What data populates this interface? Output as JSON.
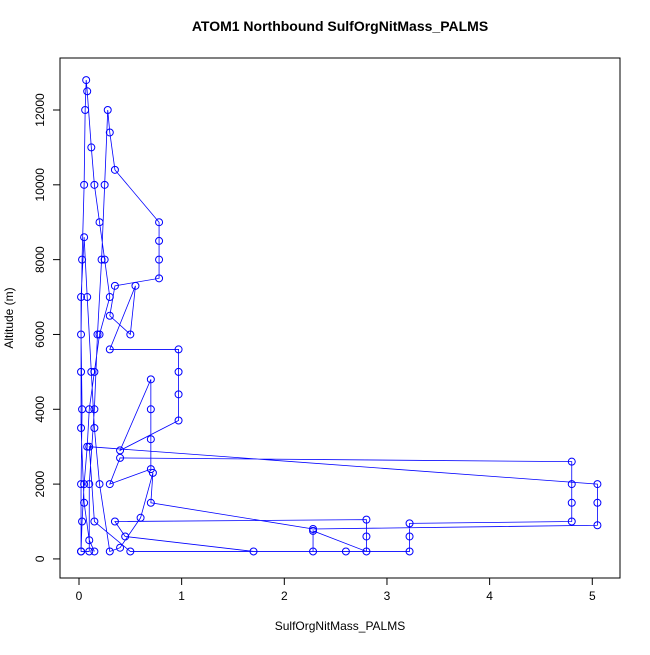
{
  "chart_data": {
    "type": "line",
    "title": "ATOM1 Northbound SulfOrgNitMass_PALMS",
    "x_label": "SulfOrgNitMass_PALMS",
    "y_label": "Altitude (m)",
    "xlim": [
      -0.185,
      5.27
    ],
    "ylim": [
      -510,
      13390
    ],
    "xticks": [
      0,
      1,
      2,
      3,
      4,
      5
    ],
    "yticks": [
      0,
      2000,
      4000,
      6000,
      8000,
      10000,
      12000
    ],
    "color": "#0000ff",
    "x": [
      0.02,
      0.02,
      0.03,
      0.02,
      0.03,
      0.05,
      0.06,
      0.07,
      0.08,
      0.12,
      0.15,
      0.2,
      0.25,
      0.3,
      0.2,
      0.15,
      0.1,
      0.08,
      0.05,
      0.03,
      0.02,
      0.1,
      0.1,
      0.15,
      0.18,
      0.22,
      0.25,
      0.28,
      0.3,
      0.35,
      0.78,
      0.78,
      0.78,
      0.78,
      0.35,
      0.3,
      0.5,
      0.55,
      0.3,
      0.97,
      0.97,
      0.97,
      0.97,
      0.4,
      0.7,
      0.7,
      0.7,
      0.7,
      0.3,
      0.4,
      4.8,
      4.8,
      4.8,
      4.8,
      3.22,
      3.22,
      3.22,
      2.6,
      1.7,
      0.45,
      0.35,
      2.8,
      2.8,
      2.8,
      2.28,
      2.28,
      0.5,
      0.15,
      0.1,
      5.05,
      5.05,
      5.05,
      2.28,
      0.7,
      0.72,
      0.6,
      0.4,
      0.3,
      0.2,
      0.15,
      0.12,
      0.08,
      0.05,
      0.02,
      0.02,
      0.02,
      0.05,
      0.1,
      0.15
    ],
    "y": [
      200,
      2000,
      4000,
      6000,
      8000,
      10000,
      12000,
      12800,
      12500,
      11000,
      10000,
      9000,
      8000,
      7000,
      6000,
      5000,
      4000,
      3000,
      2000,
      1000,
      200,
      200,
      2000,
      4000,
      6000,
      8000,
      10000,
      12000,
      11400,
      10400,
      9000,
      8500,
      8000,
      7500,
      7300,
      6500,
      6000,
      7300,
      5600,
      5600,
      5000,
      4400,
      3700,
      2900,
      4800,
      4000,
      3200,
      2400,
      2000,
      2700,
      2600,
      2000,
      1500,
      1000,
      950,
      600,
      200,
      200,
      200,
      600,
      1000,
      1050,
      600,
      200,
      750,
      200,
      200,
      1000,
      3000,
      2000,
      1500,
      900,
      800,
      1500,
      2300,
      1100,
      300,
      200,
      2000,
      3500,
      5000,
      7000,
      8600,
      7000,
      5000,
      3500,
      1500,
      500,
      200
    ]
  }
}
